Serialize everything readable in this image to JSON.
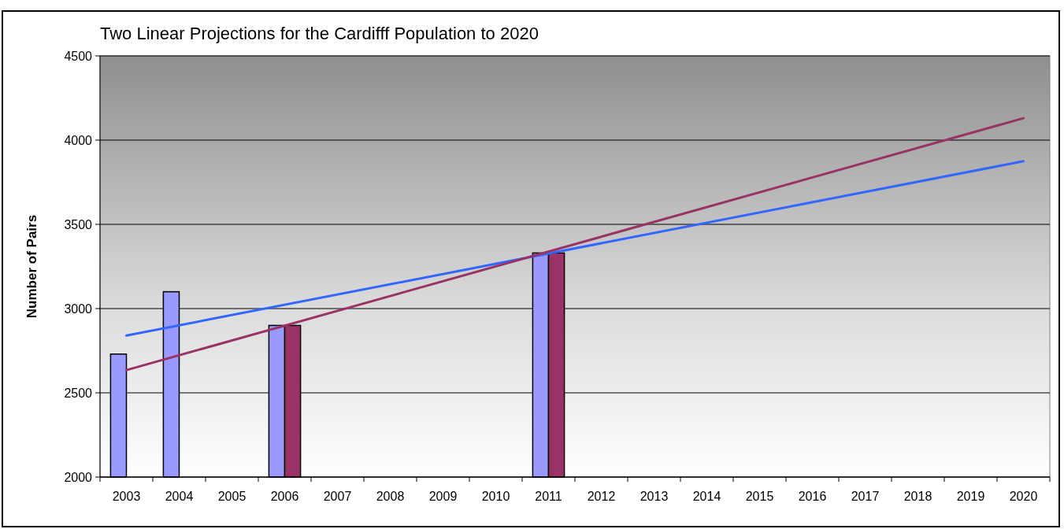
{
  "chart_data": {
    "type": "bar",
    "title": "Two Linear Projections for the Cardifff Population to 2020",
    "ylabel": "Number of Pairs",
    "categories": [
      "2003",
      "2004",
      "2005",
      "2006",
      "2007",
      "2008",
      "2009",
      "2010",
      "2011",
      "2012",
      "2013",
      "2014",
      "2015",
      "2016",
      "2017",
      "2018",
      "2019",
      "2020"
    ],
    "series": [
      {
        "color": "#9999ff",
        "values": [
          2730,
          3100,
          null,
          2900,
          null,
          null,
          null,
          null,
          3330,
          null,
          null,
          null,
          null,
          null,
          null,
          null,
          null,
          null
        ]
      },
      {
        "color": "#993366",
        "values": [
          null,
          null,
          null,
          2900,
          null,
          null,
          null,
          null,
          3330,
          null,
          null,
          null,
          null,
          null,
          null,
          null,
          null,
          null
        ]
      },
      {
        "type": "line",
        "color": "#3366ff",
        "values": [
          2840,
          null,
          null,
          null,
          null,
          null,
          null,
          null,
          null,
          null,
          null,
          null,
          null,
          null,
          null,
          null,
          null,
          3875
        ]
      },
      {
        "type": "line",
        "color": "#993366",
        "values": [
          2635,
          null,
          null,
          null,
          null,
          null,
          null,
          null,
          null,
          null,
          null,
          null,
          null,
          null,
          null,
          null,
          null,
          4130
        ]
      }
    ],
    "ylim": [
      2000,
      4500
    ],
    "yticks": [
      2000,
      2500,
      3000,
      3500,
      4000,
      4500
    ],
    "grid": "y"
  }
}
